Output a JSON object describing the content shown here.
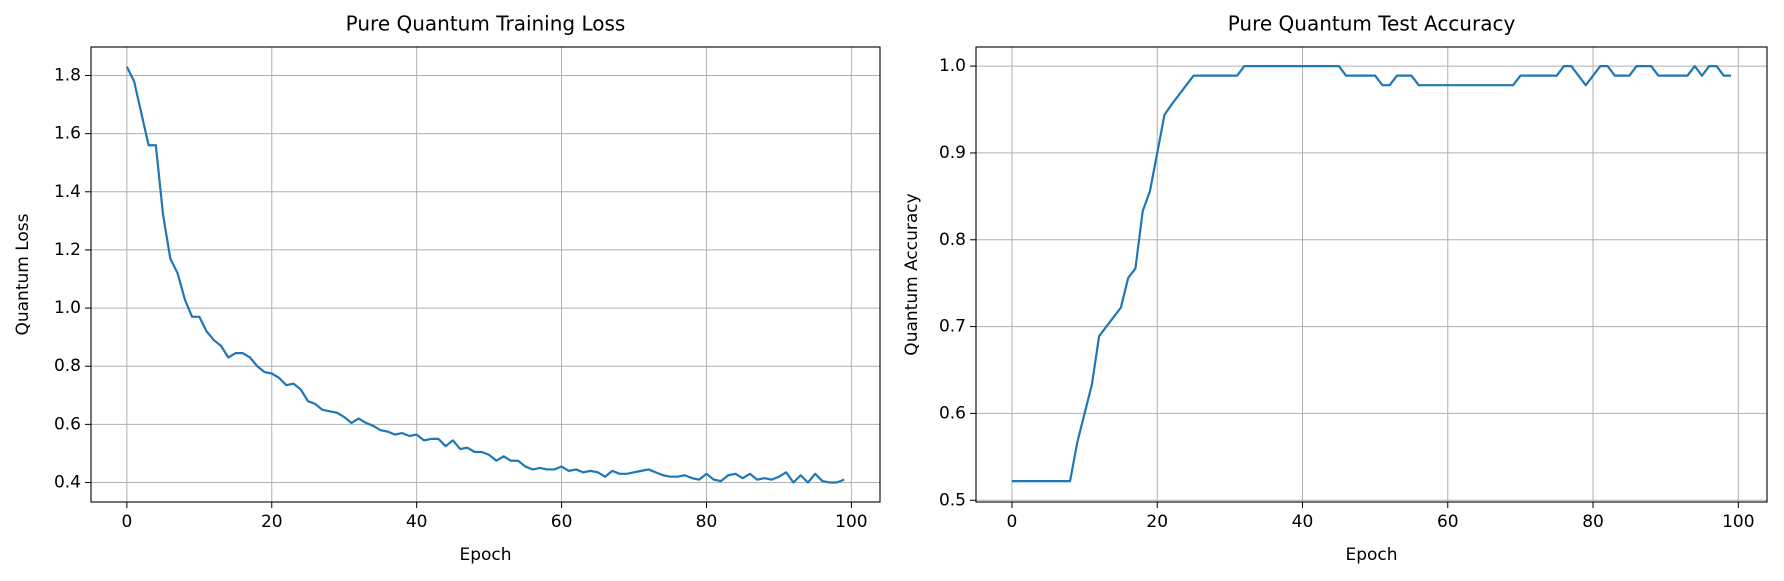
{
  "chart_data": [
    {
      "type": "line",
      "title": "Pure Quantum Training Loss",
      "x_label": "Epoch",
      "y_label": "Quantum Loss",
      "x": [
        0,
        1,
        2,
        3,
        4,
        5,
        6,
        7,
        8,
        9,
        10,
        11,
        12,
        13,
        14,
        15,
        16,
        17,
        18,
        19,
        20,
        21,
        22,
        23,
        24,
        25,
        26,
        27,
        28,
        29,
        30,
        31,
        32,
        33,
        34,
        35,
        36,
        37,
        38,
        39,
        40,
        41,
        42,
        43,
        44,
        45,
        46,
        47,
        48,
        49,
        50,
        51,
        52,
        53,
        54,
        55,
        56,
        57,
        58,
        59,
        60,
        61,
        62,
        63,
        64,
        65,
        66,
        67,
        68,
        69,
        70,
        71,
        72,
        73,
        74,
        75,
        76,
        77,
        78,
        79,
        80,
        81,
        82,
        83,
        84,
        85,
        86,
        87,
        88,
        89,
        90,
        91,
        92,
        93,
        94,
        95,
        96,
        97,
        98,
        99
      ],
      "series": [
        {
          "color": "#1f77b4",
          "values": [
            1.83,
            1.78,
            1.67,
            1.56,
            1.56,
            1.32,
            1.17,
            1.12,
            1.03,
            0.97,
            0.97,
            0.92,
            0.89,
            0.87,
            0.83,
            0.845,
            0.845,
            0.83,
            0.8,
            0.78,
            0.775,
            0.76,
            0.735,
            0.74,
            0.72,
            0.68,
            0.67,
            0.65,
            0.645,
            0.64,
            0.625,
            0.605,
            0.62,
            0.605,
            0.595,
            0.58,
            0.575,
            0.565,
            0.57,
            0.56,
            0.565,
            0.545,
            0.55,
            0.55,
            0.525,
            0.545,
            0.515,
            0.52,
            0.505,
            0.505,
            0.495,
            0.475,
            0.49,
            0.475,
            0.475,
            0.455,
            0.445,
            0.45,
            0.445,
            0.445,
            0.455,
            0.44,
            0.445,
            0.435,
            0.44,
            0.435,
            0.42,
            0.44,
            0.43,
            0.43,
            0.435,
            0.44,
            0.445,
            0.435,
            0.425,
            0.42,
            0.42,
            0.425,
            0.415,
            0.41,
            0.43,
            0.41,
            0.405,
            0.425,
            0.43,
            0.415,
            0.43,
            0.41,
            0.415,
            0.41,
            0.42,
            0.435,
            0.4,
            0.425,
            0.4,
            0.43,
            0.405,
            0.4,
            0.4,
            0.41
          ]
        }
      ],
      "xlim": [
        -4.95,
        103.95
      ],
      "xticks": [
        0,
        20,
        40,
        60,
        80,
        100
      ],
      "ylim": [
        0.333,
        1.898
      ],
      "yticks": [
        0.4,
        0.6,
        0.8,
        {
          "value": 1,
          "label": "1.0"
        },
        1.2,
        1.4,
        1.6,
        1.8
      ],
      "grid": true
    },
    {
      "type": "line",
      "title": "Pure Quantum Test Accuracy",
      "x_label": "Epoch",
      "y_label": "Quantum Accuracy",
      "x": [
        0,
        1,
        2,
        3,
        4,
        5,
        6,
        7,
        8,
        9,
        10,
        11,
        12,
        13,
        14,
        15,
        16,
        17,
        18,
        19,
        20,
        21,
        22,
        23,
        24,
        25,
        26,
        27,
        28,
        29,
        30,
        31,
        32,
        33,
        34,
        35,
        36,
        37,
        38,
        39,
        40,
        41,
        42,
        43,
        44,
        45,
        46,
        47,
        48,
        49,
        50,
        51,
        52,
        53,
        54,
        55,
        56,
        57,
        58,
        59,
        60,
        61,
        62,
        63,
        64,
        65,
        66,
        67,
        68,
        69,
        70,
        71,
        72,
        73,
        74,
        75,
        76,
        77,
        78,
        79,
        80,
        81,
        82,
        83,
        84,
        85,
        86,
        87,
        88,
        89,
        90,
        91,
        92,
        93,
        94,
        95,
        96,
        97,
        98,
        99
      ],
      "series": [
        {
          "color": "#1f77b4",
          "values": [
            0.522,
            0.522,
            0.522,
            0.522,
            0.522,
            0.522,
            0.522,
            0.522,
            0.522,
            0.567,
            0.6,
            0.633,
            0.689,
            0.7,
            0.711,
            0.722,
            0.756,
            0.767,
            0.833,
            0.856,
            0.9,
            0.944,
            0.956,
            0.967,
            0.978,
            0.989,
            0.989,
            0.989,
            0.989,
            0.989,
            0.989,
            0.989,
            1.0,
            1.0,
            1.0,
            1.0,
            1.0,
            1.0,
            1.0,
            1.0,
            1.0,
            1.0,
            1.0,
            1.0,
            1.0,
            1.0,
            0.989,
            0.989,
            0.989,
            0.989,
            0.989,
            0.978,
            0.978,
            0.989,
            0.989,
            0.989,
            0.978,
            0.978,
            0.978,
            0.978,
            0.978,
            0.978,
            0.978,
            0.978,
            0.978,
            0.978,
            0.978,
            0.978,
            0.978,
            0.978,
            0.989,
            0.989,
            0.989,
            0.989,
            0.989,
            0.989,
            1.0,
            1.0,
            0.989,
            0.978,
            0.989,
            1.0,
            1.0,
            0.989,
            0.989,
            0.989,
            1.0,
            1.0,
            1.0,
            0.989,
            0.989,
            0.989,
            0.989,
            0.989,
            1.0,
            0.989,
            1.0,
            1.0,
            0.989,
            0.989
          ]
        }
      ],
      "xlim": [
        -4.95,
        103.95
      ],
      "xticks": [
        0,
        20,
        40,
        60,
        80,
        100
      ],
      "ylim": [
        0.498,
        1.022
      ],
      "yticks": [
        0.5,
        0.6,
        0.7,
        0.8,
        0.9,
        {
          "value": 1,
          "label": "1.0"
        }
      ],
      "grid": true
    }
  ]
}
